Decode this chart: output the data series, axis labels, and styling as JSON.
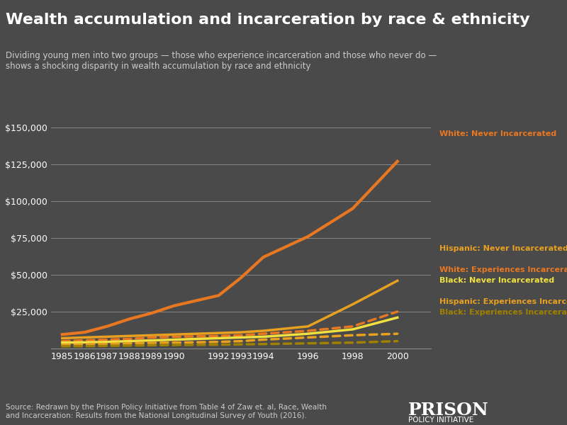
{
  "title": "Wealth accumulation and incarceration by race & ethnicity",
  "subtitle": "Dividing young men into two groups — those who experience incarceration and those who never do —\nshows a shocking disparity in wealth accumulation by race and ethnicity",
  "source": "Source: Redrawn by the Prison Policy Initiative from Table 4 of Zaw et. al, Race, Wealth\nand Incarceration: Results from the National Longitudinal Survey of Youth (2016).",
  "logo_text1": "PRISON",
  "logo_text2": "POLICY INITIATIVE",
  "background_color": "#4a4a4a",
  "text_color": "#ffffff",
  "grid_color": "#888888",
  "years": [
    1985,
    1986,
    1987,
    1988,
    1989,
    1990,
    1992,
    1993,
    1994,
    1996,
    1998,
    2000
  ],
  "series": [
    {
      "label": "White: Never Incarcerated",
      "color": "#e87722",
      "linestyle": "solid",
      "linewidth": 3.0,
      "values": [
        9500,
        11000,
        15000,
        20000,
        24000,
        29000,
        36000,
        48000,
        62000,
        76000,
        95000,
        127000
      ]
    },
    {
      "label": "Hispanic: Never Incarcerated",
      "color": "#e8a020",
      "linestyle": "solid",
      "linewidth": 2.5,
      "values": [
        7000,
        7500,
        8000,
        8500,
        9000,
        9500,
        10500,
        11000,
        12000,
        15000,
        30000,
        46000
      ]
    },
    {
      "label": "White: Experiences Incarceration",
      "color": "#e87722",
      "linestyle": "dotted",
      "linewidth": 2.5,
      "values": [
        5000,
        5500,
        6000,
        6500,
        7500,
        8000,
        8500,
        9000,
        10000,
        12000,
        15000,
        25000
      ]
    },
    {
      "label": "Black: Never Incarcerated",
      "color": "#f0e040",
      "linestyle": "solid",
      "linewidth": 2.5,
      "values": [
        4000,
        4200,
        4500,
        5000,
        5500,
        6000,
        7000,
        7500,
        8000,
        10000,
        13000,
        21000
      ]
    },
    {
      "label": "Hispanic: Experiences Incarceration",
      "color": "#e8a020",
      "linestyle": "dotted",
      "linewidth": 2.5,
      "values": [
        2500,
        2800,
        3000,
        3500,
        3800,
        4000,
        4500,
        5000,
        6000,
        7500,
        9000,
        10000
      ]
    },
    {
      "label": "Black: Experiences Incarceration",
      "color": "#a08000",
      "linestyle": "dotted",
      "linewidth": 2.5,
      "values": [
        1500,
        1600,
        1800,
        2000,
        2200,
        2400,
        2600,
        2800,
        3000,
        3500,
        4000,
        5000
      ]
    }
  ],
  "ylim": [
    0,
    150000
  ],
  "yticks": [
    0,
    25000,
    50000,
    75000,
    100000,
    125000,
    150000
  ],
  "xlabel": "",
  "ylabel": ""
}
